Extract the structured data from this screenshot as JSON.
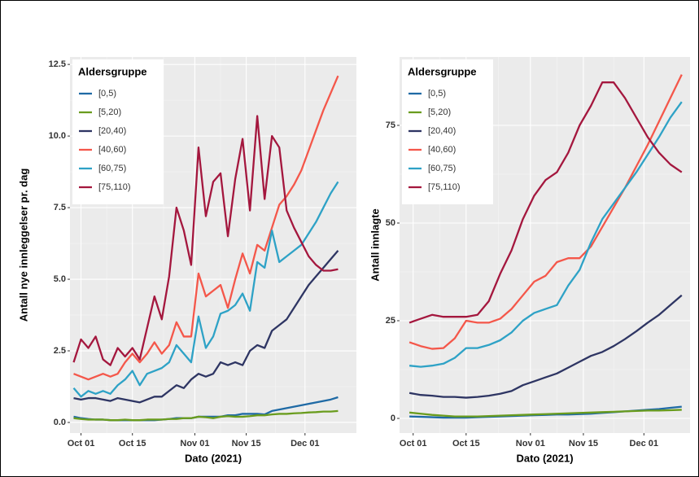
{
  "chart_data": [
    {
      "type": "line",
      "y_label": "Antall nye innleggelser pr. dag",
      "x_label": "Dato (2021)",
      "xlim": [
        271,
        349
      ],
      "ylim": [
        -0.37,
        12.76
      ],
      "xticks": [
        {
          "value": 274,
          "label": "Oct 01"
        },
        {
          "value": 288,
          "label": "Oct 15"
        },
        {
          "value": 305,
          "label": "Nov 01"
        },
        {
          "value": 319,
          "label": "Nov 15"
        },
        {
          "value": 335,
          "label": "Dec 01"
        }
      ],
      "yticks": [
        {
          "value": 0,
          "label": "0.0"
        },
        2.5,
        {
          "value": 5,
          "label": "5.0"
        },
        7.5,
        {
          "value": 10,
          "label": "10.0"
        },
        12.5
      ],
      "grid": true,
      "legend": "top-left",
      "legend_title": "Aldersgruppe",
      "x": [
        272,
        274,
        276,
        278,
        280,
        282,
        284,
        286,
        288,
        290,
        292,
        294,
        296,
        298,
        300,
        302,
        304,
        306,
        308,
        310,
        312,
        314,
        316,
        318,
        320,
        322,
        324,
        326,
        328,
        330,
        332,
        334,
        336,
        338,
        340,
        342,
        344
      ],
      "series": [
        {
          "name": "[0,5)",
          "color": "#1f6aa5",
          "values": [
            0.2,
            0.15,
            0.12,
            0.1,
            0.1,
            0.08,
            0.08,
            0.08,
            0.08,
            0.08,
            0.08,
            0.08,
            0.1,
            0.12,
            0.15,
            0.15,
            0.15,
            0.2,
            0.2,
            0.2,
            0.2,
            0.25,
            0.25,
            0.3,
            0.3,
            0.3,
            0.28,
            0.4,
            0.45,
            0.5,
            0.55,
            0.6,
            0.65,
            0.7,
            0.75,
            0.8,
            0.88
          ]
        },
        {
          "name": "[5,20)",
          "color": "#6a9c1e",
          "values": [
            0.15,
            0.12,
            0.1,
            0.1,
            0.1,
            0.08,
            0.08,
            0.1,
            0.08,
            0.08,
            0.1,
            0.1,
            0.1,
            0.12,
            0.12,
            0.15,
            0.15,
            0.2,
            0.18,
            0.15,
            0.2,
            0.22,
            0.2,
            0.2,
            0.22,
            0.25,
            0.25,
            0.28,
            0.3,
            0.3,
            0.32,
            0.33,
            0.35,
            0.36,
            0.38,
            0.38,
            0.4
          ]
        },
        {
          "name": "[20,40)",
          "color": "#2e3563",
          "values": [
            0.85,
            0.8,
            0.85,
            0.85,
            0.8,
            0.75,
            0.85,
            0.8,
            0.75,
            0.7,
            0.8,
            0.9,
            0.9,
            1.1,
            1.3,
            1.2,
            1.5,
            1.7,
            1.6,
            1.7,
            2.1,
            2.0,
            2.1,
            2.0,
            2.5,
            2.7,
            2.6,
            3.2,
            3.4,
            3.6,
            4.0,
            4.4,
            4.8,
            5.1,
            5.4,
            5.7,
            6.0
          ]
        },
        {
          "name": "[40,60)",
          "color": "#f4574a",
          "values": [
            1.7,
            1.6,
            1.5,
            1.6,
            1.7,
            1.6,
            1.7,
            2.1,
            2.4,
            2.1,
            2.4,
            2.8,
            2.4,
            2.7,
            3.5,
            3.0,
            3.0,
            5.2,
            4.4,
            4.6,
            4.8,
            4.0,
            5.0,
            5.9,
            5.2,
            6.2,
            6.0,
            6.8,
            7.6,
            7.9,
            8.3,
            8.8,
            9.5,
            10.2,
            10.9,
            11.5,
            12.1
          ]
        },
        {
          "name": "[60,75)",
          "color": "#2ea2c6",
          "values": [
            1.2,
            0.9,
            1.1,
            1.0,
            1.1,
            1.0,
            1.3,
            1.5,
            1.8,
            1.3,
            1.7,
            1.8,
            1.9,
            2.1,
            2.7,
            2.4,
            2.1,
            3.7,
            2.6,
            3.0,
            3.8,
            3.9,
            4.1,
            4.5,
            3.9,
            5.6,
            5.4,
            6.7,
            5.6,
            5.8,
            6.0,
            6.2,
            6.6,
            7.0,
            7.5,
            8.0,
            8.4
          ]
        },
        {
          "name": "[75,110)",
          "color": "#a4173e",
          "values": [
            2.1,
            2.9,
            2.6,
            3.0,
            2.2,
            2.0,
            2.6,
            2.3,
            2.6,
            2.2,
            3.3,
            4.4,
            3.6,
            5.1,
            7.5,
            6.7,
            5.5,
            9.6,
            7.2,
            8.4,
            8.7,
            6.5,
            8.5,
            9.9,
            7.4,
            10.7,
            7.8,
            10.0,
            9.6,
            7.4,
            6.8,
            6.3,
            5.8,
            5.5,
            5.3,
            5.3,
            5.35
          ]
        }
      ]
    },
    {
      "type": "line",
      "y_label": "Antall innlagte",
      "x_label": "Dato (2021)",
      "xlim": [
        270.4,
        347.2
      ],
      "ylim": [
        -3.75,
        92.5
      ],
      "xticks": [
        {
          "value": 274,
          "label": "Oct 01"
        },
        {
          "value": 288,
          "label": "Oct 15"
        },
        {
          "value": 305,
          "label": "Nov 01"
        },
        {
          "value": 319,
          "label": "Nov 15"
        },
        {
          "value": 335,
          "label": "Dec 01"
        }
      ],
      "yticks": [
        0,
        25,
        50,
        75
      ],
      "grid": true,
      "legend": "top-left",
      "legend_title": "Aldersgruppe",
      "x": [
        273,
        276,
        279,
        282,
        285,
        288,
        291,
        294,
        297,
        300,
        303,
        306,
        309,
        312,
        315,
        318,
        321,
        324,
        327,
        330,
        333,
        336,
        339,
        342,
        345
      ],
      "series": [
        {
          "name": "[0,5)",
          "color": "#1f6aa5",
          "values": [
            0.5,
            0.4,
            0.3,
            0.2,
            0.2,
            0.2,
            0.3,
            0.4,
            0.5,
            0.6,
            0.7,
            0.8,
            0.9,
            1.0,
            1.0,
            1.1,
            1.2,
            1.4,
            1.6,
            1.8,
            2.0,
            2.2,
            2.4,
            2.7,
            3.0
          ]
        },
        {
          "name": "[5,20)",
          "color": "#6a9c1e",
          "values": [
            1.5,
            1.2,
            0.9,
            0.7,
            0.5,
            0.5,
            0.5,
            0.6,
            0.7,
            0.8,
            0.9,
            1.0,
            1.1,
            1.2,
            1.3,
            1.4,
            1.5,
            1.6,
            1.7,
            1.8,
            1.9,
            2.0,
            2.0,
            2.1,
            2.2
          ]
        },
        {
          "name": "[20,40)",
          "color": "#2e3563",
          "values": [
            6.5,
            6,
            5.8,
            5.5,
            5.5,
            5.3,
            5.5,
            5.8,
            6.3,
            7,
            8.5,
            9.5,
            10.5,
            11.5,
            13,
            14.5,
            16,
            17,
            18.5,
            20.3,
            22.3,
            24.5,
            26.5,
            29,
            31.5
          ]
        },
        {
          "name": "[40,60)",
          "color": "#f4574a",
          "values": [
            19.5,
            18.5,
            17.8,
            18,
            20.5,
            25,
            24.5,
            24.5,
            25.5,
            28,
            31.5,
            35,
            36.5,
            40,
            41,
            41,
            44,
            49,
            54,
            59,
            64.5,
            70,
            76,
            82,
            88
          ]
        },
        {
          "name": "[60,75)",
          "color": "#2ea2c6",
          "values": [
            13.5,
            13.2,
            13.5,
            14,
            15.5,
            18,
            18,
            18.8,
            20,
            22,
            25,
            27,
            28,
            29,
            34,
            38,
            45,
            51,
            55,
            59,
            63,
            67.5,
            72,
            77,
            81
          ]
        },
        {
          "name": "[75,110)",
          "color": "#a4173e",
          "values": [
            24.5,
            25.5,
            26.5,
            26,
            26,
            26,
            26.5,
            30,
            37,
            43,
            51,
            57,
            61,
            63,
            68,
            75,
            80,
            86,
            86,
            82,
            77,
            72,
            68,
            65,
            63
          ]
        }
      ]
    }
  ]
}
